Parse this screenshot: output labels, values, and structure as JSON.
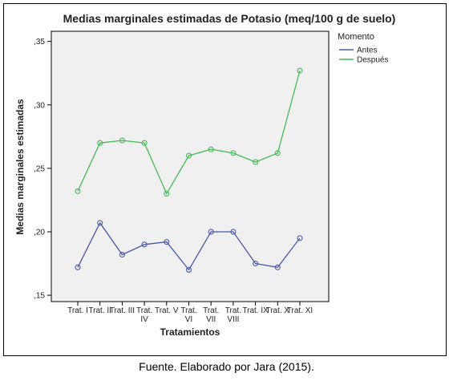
{
  "caption": "Fuente. Elaborado por Jara (2015).",
  "chart_data": {
    "type": "line",
    "title": "Medias marginales estimadas de Potasio (meq/100 g de suelo)",
    "xlabel": "Tratamientos",
    "ylabel": "Medias marginales estimadas",
    "ylim": [
      0.145,
      0.358
    ],
    "yticks": [
      0.15,
      0.2,
      0.25,
      0.3,
      0.35
    ],
    "ytick_labels": [
      ",15",
      ",20",
      ",25",
      ",30",
      ",35"
    ],
    "categories": [
      [
        "Trat. I"
      ],
      [
        "Trat. II"
      ],
      [
        "Trat. III"
      ],
      [
        "Trat.",
        "IV"
      ],
      [
        "Trat. V"
      ],
      [
        "Trat.",
        "VI"
      ],
      [
        "Trat.",
        "VII"
      ],
      [
        "Trat.",
        "VIII"
      ],
      [
        "Trat. IX"
      ],
      [
        "Trat. X"
      ],
      [
        "Trat. XI"
      ]
    ],
    "legend_title": "Momento",
    "legend_position": "right",
    "grid": false,
    "series": [
      {
        "name": "Antes",
        "color": "#4a5aa8",
        "values": [
          0.172,
          0.207,
          0.182,
          0.19,
          0.192,
          0.17,
          0.2,
          0.2,
          0.175,
          0.172,
          0.195
        ]
      },
      {
        "name": "Después",
        "color": "#44bb55",
        "values": [
          0.232,
          0.27,
          0.272,
          0.27,
          0.23,
          0.26,
          0.265,
          0.262,
          0.255,
          0.262,
          0.327
        ]
      }
    ],
    "plot_background": "#f0f0f0"
  }
}
